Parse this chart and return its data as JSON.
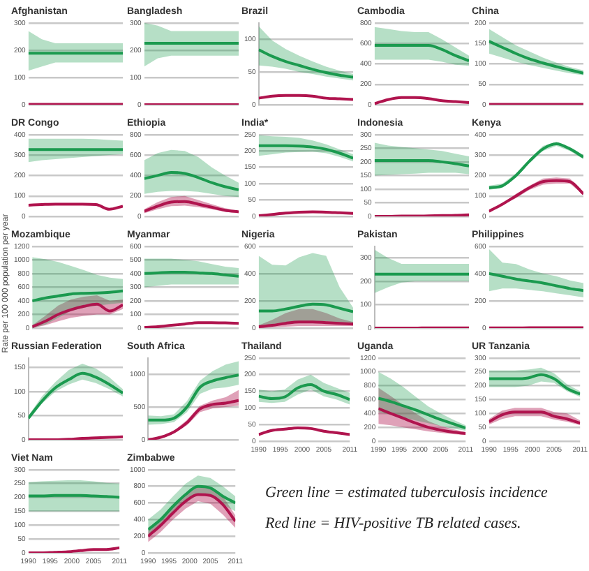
{
  "chart_data": [
    {
      "type": "line",
      "title": "Afghanistan",
      "x": [
        1990,
        1993,
        1996,
        1999,
        2002,
        2005,
        2008,
        2011
      ],
      "xlim": [
        1990,
        2011
      ],
      "ylim": [
        0,
        300
      ],
      "yticks": [
        0,
        100,
        200,
        300
      ],
      "grid": "y",
      "tick_labels": "y",
      "marker": "none",
      "series": [
        {
          "color": "#1b9a4f",
          "values": [
            189,
            189,
            189,
            189,
            189,
            189,
            189,
            189
          ],
          "lower": [
            125,
            140,
            155,
            155,
            155,
            155,
            155,
            155
          ],
          "upper": [
            270,
            240,
            225,
            225,
            225,
            225,
            225,
            225
          ]
        },
        {
          "color": "#b0144e",
          "values": [
            1,
            1,
            1,
            1,
            1,
            1,
            1,
            1
          ]
        }
      ]
    },
    {
      "type": "line",
      "title": "Bangladesh",
      "x": [
        1990,
        1993,
        1996,
        1999,
        2002,
        2005,
        2008,
        2011
      ],
      "xlim": [
        1990,
        2011
      ],
      "ylim": [
        0,
        300
      ],
      "yticks": [
        0,
        100,
        200,
        300
      ],
      "grid": "y",
      "tick_labels": "y",
      "marker": "none",
      "series": [
        {
          "color": "#1b9a4f",
          "values": [
            225,
            225,
            225,
            225,
            225,
            225,
            225,
            225
          ],
          "lower": [
            140,
            170,
            180,
            180,
            180,
            180,
            180,
            180
          ],
          "upper": [
            300,
            290,
            270,
            270,
            270,
            270,
            270,
            270
          ]
        },
        {
          "color": "#b0144e",
          "values": [
            0,
            0,
            0,
            0,
            0,
            0,
            0,
            0
          ]
        }
      ]
    },
    {
      "type": "line",
      "title": "Brazil",
      "x": [
        1990,
        1993,
        1996,
        1999,
        2002,
        2005,
        2008,
        2011
      ],
      "xlim": [
        1990,
        2011
      ],
      "ylim": [
        0,
        125
      ],
      "yticks": [
        0,
        50,
        100
      ],
      "grid": "y",
      "tick_labels": "y",
      "marker": "none",
      "series": [
        {
          "color": "#1b9a4f",
          "values": [
            84,
            74,
            66,
            60,
            54,
            49,
            45,
            42
          ],
          "lower": [
            60,
            58,
            55,
            50,
            47,
            43,
            40,
            37
          ],
          "upper": [
            120,
            98,
            85,
            75,
            66,
            58,
            52,
            47
          ]
        },
        {
          "color": "#b0144e",
          "values": [
            10,
            13,
            14,
            14,
            13,
            10,
            9,
            8
          ]
        }
      ]
    },
    {
      "type": "line",
      "title": "Cambodia",
      "x": [
        1990,
        1993,
        1996,
        1999,
        2002,
        2005,
        2008,
        2011
      ],
      "xlim": [
        1990,
        2011
      ],
      "ylim": [
        0,
        800
      ],
      "yticks": [
        0,
        200,
        400,
        600,
        800
      ],
      "grid": "y",
      "tick_labels": "y",
      "marker": "none",
      "series": [
        {
          "color": "#1b9a4f",
          "values": [
            580,
            580,
            580,
            580,
            580,
            540,
            480,
            430
          ],
          "lower": [
            440,
            440,
            440,
            440,
            440,
            420,
            390,
            380
          ],
          "upper": [
            760,
            740,
            720,
            710,
            710,
            640,
            560,
            480
          ]
        },
        {
          "color": "#b0144e",
          "values": [
            10,
            50,
            70,
            70,
            60,
            40,
            30,
            20
          ]
        }
      ]
    },
    {
      "type": "line",
      "title": "China",
      "x": [
        1990,
        1993,
        1996,
        1999,
        2002,
        2005,
        2008,
        2011
      ],
      "xlim": [
        1990,
        2011
      ],
      "ylim": [
        0,
        200
      ],
      "yticks": [
        0,
        50,
        100,
        150,
        200
      ],
      "grid": "y",
      "tick_labels": "y",
      "marker": "none",
      "series": [
        {
          "color": "#1b9a4f",
          "values": [
            155,
            140,
            125,
            112,
            102,
            93,
            85,
            77
          ],
          "lower": [
            125,
            115,
            105,
            97,
            90,
            83,
            77,
            72
          ],
          "upper": [
            185,
            165,
            145,
            130,
            115,
            103,
            92,
            84
          ]
        },
        {
          "color": "#b0144e",
          "values": [
            1,
            1,
            1,
            1,
            1,
            1,
            1,
            1
          ]
        }
      ]
    },
    {
      "type": "line",
      "title": "DR Congo",
      "x": [
        1990,
        1993,
        1996,
        1999,
        2002,
        2005,
        2008,
        2011
      ],
      "xlim": [
        1990,
        2011
      ],
      "ylim": [
        0,
        400
      ],
      "yticks": [
        0,
        100,
        200,
        300,
        400
      ],
      "grid": "y",
      "tick_labels": "y",
      "marker": "none",
      "series": [
        {
          "color": "#1b9a4f",
          "values": [
            327,
            327,
            327,
            327,
            327,
            327,
            327,
            327
          ],
          "lower": [
            265,
            275,
            280,
            285,
            290,
            295,
            300,
            305
          ],
          "upper": [
            380,
            380,
            380,
            380,
            380,
            378,
            374,
            370
          ]
        },
        {
          "color": "#b0144e",
          "values": [
            55,
            58,
            60,
            60,
            60,
            58,
            35,
            50
          ]
        }
      ]
    },
    {
      "type": "line",
      "title": "Ethiopia",
      "x": [
        1990,
        1993,
        1996,
        1999,
        2002,
        2005,
        2008,
        2011
      ],
      "xlim": [
        1990,
        2011
      ],
      "ylim": [
        0,
        800
      ],
      "yticks": [
        0,
        200,
        400,
        600,
        800
      ],
      "grid": "y",
      "tick_labels": "y",
      "marker": "none",
      "series": [
        {
          "color": "#1b9a4f",
          "values": [
            370,
            400,
            430,
            420,
            380,
            330,
            290,
            260
          ],
          "lower": [
            220,
            240,
            250,
            250,
            240,
            220,
            200,
            190
          ],
          "upper": [
            550,
            620,
            650,
            640,
            580,
            480,
            400,
            330
          ]
        },
        {
          "color": "#b0144e",
          "values": [
            50,
            100,
            140,
            145,
            120,
            90,
            60,
            45
          ],
          "lower": [
            30,
            70,
            100,
            105,
            90,
            70,
            45,
            35
          ],
          "upper": [
            70,
            140,
            190,
            200,
            160,
            120,
            80,
            55
          ]
        }
      ]
    },
    {
      "type": "line",
      "title": "India*",
      "x": [
        1990,
        1993,
        1996,
        1999,
        2002,
        2005,
        2008,
        2011
      ],
      "xlim": [
        1990,
        2011
      ],
      "ylim": [
        0,
        250
      ],
      "yticks": [
        0,
        50,
        100,
        150,
        200,
        250
      ],
      "grid": "y",
      "tick_labels": "y",
      "marker": "none",
      "series": [
        {
          "color": "#1b9a4f",
          "values": [
            216,
            216,
            216,
            215,
            212,
            205,
            193,
            178
          ],
          "lower": [
            185,
            190,
            195,
            197,
            198,
            193,
            182,
            168
          ],
          "upper": [
            248,
            245,
            243,
            240,
            232,
            220,
            205,
            190
          ]
        },
        {
          "color": "#b0144e",
          "values": [
            2,
            6,
            10,
            13,
            14,
            13,
            11,
            9
          ]
        }
      ]
    },
    {
      "type": "line",
      "title": "Indonesia",
      "x": [
        1990,
        1993,
        1996,
        1999,
        2002,
        2005,
        2008,
        2011
      ],
      "xlim": [
        1990,
        2011
      ],
      "ylim": [
        0,
        300
      ],
      "yticks": [
        0,
        50,
        100,
        150,
        200,
        250,
        300
      ],
      "grid": "y",
      "tick_labels": "y",
      "marker": "none",
      "series": [
        {
          "color": "#1b9a4f",
          "values": [
            205,
            205,
            205,
            205,
            205,
            200,
            193,
            185
          ],
          "lower": [
            150,
            152,
            155,
            157,
            160,
            160,
            160,
            155
          ],
          "upper": [
            270,
            260,
            255,
            250,
            245,
            240,
            230,
            220
          ]
        },
        {
          "color": "#b0144e",
          "values": [
            0,
            0,
            1,
            1,
            2,
            3,
            4,
            6
          ]
        }
      ]
    },
    {
      "type": "line",
      "title": "Kenya",
      "x": [
        1990,
        1993,
        1996,
        1999,
        2002,
        2005,
        2008,
        2011
      ],
      "xlim": [
        1990,
        2011
      ],
      "ylim": [
        0,
        400
      ],
      "yticks": [
        0,
        100,
        200,
        300,
        400
      ],
      "grid": "y",
      "tick_labels": "y",
      "marker": "none",
      "series": [
        {
          "color": "#1b9a4f",
          "values": [
            140,
            150,
            200,
            270,
            330,
            355,
            330,
            290
          ],
          "lower": [
            130,
            140,
            190,
            260,
            320,
            345,
            320,
            280
          ],
          "upper": [
            150,
            160,
            210,
            280,
            345,
            365,
            340,
            300
          ]
        },
        {
          "color": "#b0144e",
          "values": [
            25,
            60,
            100,
            140,
            170,
            175,
            170,
            110
          ],
          "lower": [
            20,
            55,
            90,
            130,
            155,
            160,
            160,
            105
          ],
          "upper": [
            30,
            65,
            110,
            150,
            185,
            190,
            185,
            120
          ]
        }
      ]
    },
    {
      "type": "line",
      "title": "Mozambique",
      "ylabel": "Rate per 100 000 population per year",
      "x": [
        1990,
        1993,
        1996,
        1999,
        2002,
        2005,
        2008,
        2011
      ],
      "xlim": [
        1990,
        2011
      ],
      "ylim": [
        0,
        1200
      ],
      "yticks": [
        0,
        200,
        400,
        600,
        800,
        1000,
        1200
      ],
      "grid": "y",
      "tick_labels": "y",
      "marker": "none",
      "series": [
        {
          "color": "#1b9a4f",
          "values": [
            400,
            440,
            470,
            500,
            510,
            515,
            525,
            545
          ],
          "lower": [
            0,
            50,
            150,
            250,
            300,
            330,
            350,
            370
          ],
          "upper": [
            1040,
            1010,
            970,
            910,
            850,
            780,
            740,
            720
          ]
        },
        {
          "color": "#b0144e",
          "values": [
            20,
            100,
            200,
            270,
            320,
            350,
            250,
            340
          ],
          "lower": [
            0,
            40,
            100,
            150,
            180,
            200,
            200,
            280
          ],
          "upper": [
            40,
            180,
            330,
            420,
            460,
            480,
            400,
            420
          ]
        }
      ]
    },
    {
      "type": "line",
      "title": "Myanmar",
      "x": [
        1990,
        1993,
        1996,
        1999,
        2002,
        2005,
        2008,
        2011
      ],
      "xlim": [
        1990,
        2011
      ],
      "ylim": [
        0,
        600
      ],
      "yticks": [
        0,
        100,
        200,
        300,
        400,
        500,
        600
      ],
      "grid": "y",
      "tick_labels": "y",
      "marker": "none",
      "series": [
        {
          "color": "#1b9a4f",
          "values": [
            400,
            405,
            410,
            410,
            405,
            400,
            390,
            380
          ],
          "lower": [
            300,
            310,
            320,
            320,
            320,
            320,
            320,
            320
          ],
          "upper": [
            510,
            510,
            510,
            500,
            490,
            470,
            450,
            440
          ]
        },
        {
          "color": "#b0144e",
          "values": [
            5,
            10,
            20,
            30,
            40,
            40,
            38,
            35
          ]
        }
      ]
    },
    {
      "type": "line",
      "title": "Nigeria",
      "x": [
        1990,
        1993,
        1996,
        1999,
        2002,
        2005,
        2008,
        2011
      ],
      "xlim": [
        1990,
        2011
      ],
      "ylim": [
        0,
        600
      ],
      "yticks": [
        0,
        200,
        400,
        600
      ],
      "grid": "y",
      "tick_labels": "y",
      "marker": "none",
      "series": [
        {
          "color": "#1b9a4f",
          "values": [
            125,
            125,
            140,
            160,
            175,
            170,
            145,
            120
          ],
          "lower": [
            20,
            20,
            30,
            40,
            50,
            50,
            40,
            30
          ],
          "upper": [
            530,
            465,
            460,
            520,
            550,
            530,
            300,
            150
          ]
        },
        {
          "color": "#b0144e",
          "values": [
            10,
            20,
            35,
            45,
            45,
            40,
            35,
            30
          ],
          "lower": [
            0,
            5,
            10,
            15,
            15,
            15,
            15,
            15
          ],
          "upper": [
            20,
            60,
            110,
            140,
            140,
            110,
            70,
            45
          ]
        }
      ]
    },
    {
      "type": "line",
      "title": "Pakistan",
      "x": [
        1990,
        1993,
        1996,
        1999,
        2002,
        2005,
        2008,
        2011
      ],
      "xlim": [
        1990,
        2011
      ],
      "ylim": [
        0,
        350
      ],
      "yticks": [
        0,
        100,
        200,
        300
      ],
      "grid": "y",
      "tick_labels": "y",
      "marker": "none",
      "series": [
        {
          "color": "#1b9a4f",
          "values": [
            231,
            231,
            231,
            231,
            231,
            231,
            231,
            231
          ],
          "lower": [
            150,
            175,
            195,
            200,
            200,
            200,
            200,
            200
          ],
          "upper": [
            335,
            300,
            275,
            275,
            275,
            275,
            275,
            275
          ]
        },
        {
          "color": "#b0144e",
          "values": [
            0,
            0,
            0,
            0,
            1,
            1,
            1,
            1
          ]
        }
      ]
    },
    {
      "type": "line",
      "title": "Philippines",
      "x": [
        1990,
        1993,
        1996,
        1999,
        2002,
        2005,
        2008,
        2011
      ],
      "xlim": [
        1990,
        2011
      ],
      "ylim": [
        0,
        600
      ],
      "yticks": [
        0,
        200,
        400,
        600
      ],
      "grid": "y",
      "tick_labels": "y",
      "marker": "none",
      "series": [
        {
          "color": "#1b9a4f",
          "values": [
            400,
            380,
            360,
            345,
            330,
            310,
            290,
            275
          ],
          "lower": [
            270,
            290,
            290,
            280,
            270,
            255,
            240,
            225
          ],
          "upper": [
            580,
            480,
            470,
            430,
            400,
            380,
            350,
            330
          ]
        },
        {
          "color": "#b0144e",
          "values": [
            1,
            1,
            1,
            2,
            2,
            2,
            3,
            3
          ]
        }
      ]
    },
    {
      "type": "line",
      "title": "Russian Federation",
      "x": [
        1990,
        1993,
        1996,
        1999,
        2002,
        2005,
        2008,
        2011
      ],
      "xlim": [
        1990,
        2011
      ],
      "ylim": [
        0,
        170
      ],
      "yticks": [
        0,
        50,
        100,
        150
      ],
      "grid": "y",
      "tick_labels": "y",
      "marker": "none",
      "series": [
        {
          "color": "#1b9a4f",
          "values": [
            45,
            80,
            108,
            125,
            138,
            130,
            115,
            97
          ],
          "lower": [
            40,
            75,
            100,
            115,
            125,
            118,
            105,
            90
          ],
          "upper": [
            50,
            90,
            120,
            145,
            158,
            148,
            130,
            105
          ]
        },
        {
          "color": "#b0144e",
          "values": [
            0,
            0,
            0,
            1,
            3,
            4,
            5,
            6
          ]
        }
      ]
    },
    {
      "type": "line",
      "title": "South Africa",
      "x": [
        1990,
        1993,
        1996,
        1999,
        2002,
        2005,
        2008,
        2011
      ],
      "xlim": [
        1990,
        2011
      ],
      "ylim": [
        0,
        1250
      ],
      "yticks": [
        0,
        500,
        1000
      ],
      "grid": "y",
      "tick_labels": "y",
      "marker": "none",
      "series": [
        {
          "color": "#1b9a4f",
          "values": [
            300,
            300,
            330,
            500,
            800,
            900,
            950,
            990
          ],
          "lower": [
            230,
            240,
            270,
            420,
            700,
            780,
            800,
            840
          ],
          "upper": [
            370,
            360,
            390,
            590,
            900,
            1050,
            1150,
            1200
          ]
        },
        {
          "color": "#b0144e",
          "values": [
            0,
            40,
            120,
            260,
            470,
            540,
            560,
            600
          ],
          "lower": [
            0,
            30,
            100,
            220,
            420,
            480,
            500,
            520
          ],
          "upper": [
            10,
            50,
            140,
            300,
            520,
            600,
            650,
            760
          ]
        }
      ]
    },
    {
      "type": "line",
      "title": "Thailand",
      "x": [
        1990,
        1993,
        1996,
        1999,
        2002,
        2005,
        2008,
        2011
      ],
      "xlim": [
        1990,
        2011
      ],
      "xticks": [
        1990,
        1995,
        2000,
        2005,
        2011
      ],
      "ylim": [
        0,
        250
      ],
      "yticks": [
        0,
        50,
        100,
        150,
        200,
        250
      ],
      "grid": "y",
      "marker": "none",
      "series": [
        {
          "color": "#1b9a4f",
          "values": [
            135,
            128,
            133,
            160,
            170,
            150,
            140,
            125
          ],
          "lower": [
            118,
            115,
            118,
            140,
            155,
            135,
            125,
            110
          ],
          "upper": [
            155,
            150,
            155,
            185,
            200,
            175,
            160,
            145
          ]
        },
        {
          "color": "#b0144e",
          "values": [
            20,
            32,
            36,
            40,
            38,
            30,
            25,
            20
          ]
        }
      ]
    },
    {
      "type": "line",
      "title": "Uganda",
      "x": [
        1990,
        1993,
        1996,
        1999,
        2002,
        2005,
        2008,
        2011
      ],
      "xlim": [
        1990,
        2011
      ],
      "xticks": [
        1990,
        1995,
        2000,
        2005,
        2011
      ],
      "ylim": [
        0,
        1200
      ],
      "yticks": [
        0,
        200,
        400,
        600,
        800,
        1000,
        1200
      ],
      "grid": "y",
      "marker": "none",
      "series": [
        {
          "color": "#1b9a4f",
          "values": [
            620,
            570,
            510,
            450,
            380,
            310,
            250,
            190
          ],
          "lower": [
            420,
            380,
            340,
            300,
            260,
            220,
            180,
            150
          ],
          "upper": [
            1000,
            900,
            780,
            640,
            500,
            400,
            310,
            230
          ]
        },
        {
          "color": "#b0144e",
          "values": [
            470,
            400,
            330,
            260,
            200,
            160,
            130,
            110
          ],
          "lower": [
            250,
            230,
            200,
            170,
            140,
            120,
            100,
            90
          ],
          "upper": [
            770,
            650,
            520,
            400,
            290,
            220,
            170,
            130
          ]
        }
      ]
    },
    {
      "type": "line",
      "title": "UR Tanzania",
      "x": [
        1990,
        1993,
        1996,
        1999,
        2002,
        2005,
        2008,
        2011
      ],
      "xlim": [
        1990,
        2011
      ],
      "xticks": [
        1990,
        1995,
        2000,
        2005,
        2011
      ],
      "ylim": [
        0,
        300
      ],
      "yticks": [
        0,
        50,
        100,
        150,
        200,
        250,
        300
      ],
      "grid": "y",
      "marker": "none",
      "series": [
        {
          "color": "#1b9a4f",
          "values": [
            225,
            225,
            225,
            228,
            240,
            225,
            190,
            170
          ],
          "lower": [
            195,
            195,
            195,
            200,
            215,
            210,
            180,
            160
          ],
          "upper": [
            255,
            255,
            255,
            258,
            265,
            245,
            205,
            180
          ]
        },
        {
          "color": "#b0144e",
          "values": [
            70,
            95,
            105,
            105,
            105,
            90,
            80,
            65
          ],
          "lower": [
            60,
            80,
            90,
            90,
            90,
            78,
            70,
            58
          ],
          "upper": [
            80,
            110,
            120,
            120,
            120,
            105,
            100,
            75
          ]
        }
      ]
    },
    {
      "type": "line",
      "title": "Viet Nam",
      "x": [
        1990,
        1993,
        1996,
        1999,
        2002,
        2005,
        2008,
        2011
      ],
      "xlim": [
        1990,
        2011
      ],
      "xticks": [
        1990,
        1995,
        2000,
        2005,
        2011
      ],
      "ylim": [
        0,
        300
      ],
      "yticks": [
        0,
        50,
        100,
        150,
        200,
        250,
        300
      ],
      "grid": "y",
      "marker": "none",
      "series": [
        {
          "color": "#1b9a4f",
          "values": [
            205,
            205,
            207,
            207,
            207,
            205,
            203,
            200
          ],
          "lower": [
            150,
            150,
            150,
            150,
            150,
            150,
            150,
            150
          ],
          "upper": [
            255,
            258,
            260,
            262,
            262,
            258,
            252,
            250
          ]
        },
        {
          "color": "#b0144e",
          "values": [
            0,
            0,
            2,
            4,
            8,
            12,
            12,
            18
          ]
        }
      ]
    },
    {
      "type": "line",
      "title": "Zimbabwe",
      "x": [
        1990,
        1993,
        1996,
        1999,
        2002,
        2005,
        2008,
        2011
      ],
      "xlim": [
        1990,
        2011
      ],
      "xticks": [
        1990,
        1995,
        2000,
        2005,
        2011
      ],
      "ylim": [
        0,
        1000
      ],
      "yticks": [
        0,
        200,
        400,
        600,
        800,
        1000
      ],
      "grid": "y",
      "marker": "none",
      "series": [
        {
          "color": "#1b9a4f",
          "values": [
            280,
            400,
            560,
            700,
            800,
            780,
            680,
            600
          ],
          "lower": [
            220,
            320,
            470,
            600,
            700,
            680,
            580,
            500
          ],
          "upper": [
            400,
            520,
            680,
            830,
            930,
            900,
            800,
            680
          ]
        },
        {
          "color": "#b0144e",
          "values": [
            200,
            330,
            480,
            620,
            700,
            690,
            580,
            380
          ],
          "lower": [
            130,
            250,
            400,
            530,
            620,
            590,
            460,
            300
          ],
          "upper": [
            270,
            410,
            560,
            700,
            790,
            790,
            680,
            450
          ]
        }
      ]
    },
    {
      "type": "other",
      "annotations": [
        "Green line = estimated tuberculosis incidence",
        "Red line = HIV-positive TB related cases."
      ]
    }
  ]
}
